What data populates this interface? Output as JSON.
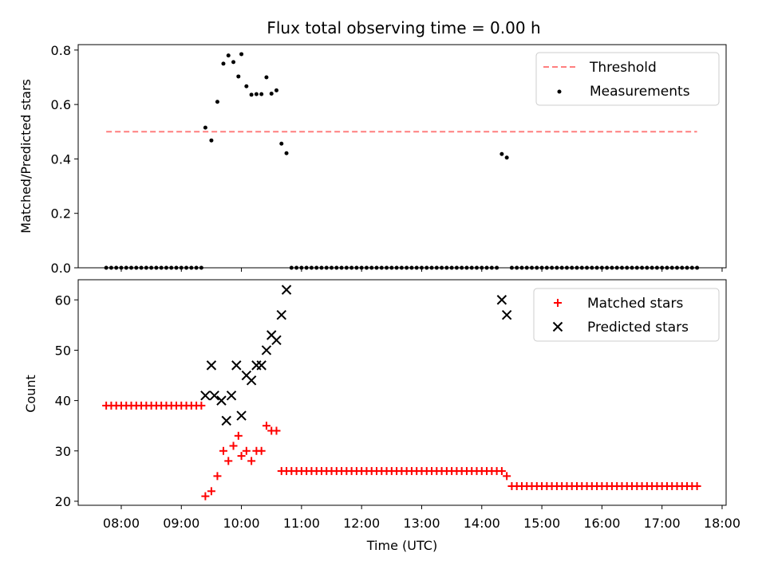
{
  "chart_data": [
    {
      "type": "scatter",
      "title": "Flux total observing time = 0.00 h",
      "xlabel": "",
      "ylabel": "Matched/Predicted stars",
      "xlim": [
        "07:17",
        "18:04"
      ],
      "ylim": [
        0,
        0.82
      ],
      "yticks": [
        "0.0",
        "0.2",
        "0.4",
        "0.6",
        "0.8"
      ],
      "legend_position": "top-right",
      "grid": false,
      "series": [
        {
          "name": "Threshold",
          "kind": "dashed-line",
          "color": "#ff7f7f",
          "points": [
            [
              "07:45",
              0.5
            ],
            [
              "17:35",
              0.5
            ]
          ]
        },
        {
          "name": "Measurements",
          "kind": "scatter-dot",
          "color": "#000000",
          "points": [
            [
              "07:45",
              0
            ],
            [
              "07:50",
              0
            ],
            [
              "07:55",
              0
            ],
            [
              "08:00",
              0
            ],
            [
              "08:05",
              0
            ],
            [
              "08:10",
              0
            ],
            [
              "08:15",
              0
            ],
            [
              "08:20",
              0
            ],
            [
              "08:25",
              0
            ],
            [
              "08:30",
              0
            ],
            [
              "08:35",
              0
            ],
            [
              "08:40",
              0
            ],
            [
              "08:45",
              0
            ],
            [
              "08:50",
              0
            ],
            [
              "08:55",
              0
            ],
            [
              "09:00",
              0
            ],
            [
              "09:05",
              0
            ],
            [
              "09:10",
              0
            ],
            [
              "09:15",
              0
            ],
            [
              "09:20",
              0
            ],
            [
              "09:24",
              0.515
            ],
            [
              "09:30",
              0.468
            ],
            [
              "09:36",
              0.61
            ],
            [
              "09:42",
              0.75
            ],
            [
              "09:47",
              0.78
            ],
            [
              "09:52",
              0.756
            ],
            [
              "09:57",
              0.703
            ],
            [
              "10:00",
              0.785
            ],
            [
              "10:05",
              0.667
            ],
            [
              "10:10",
              0.636
            ],
            [
              "10:15",
              0.638
            ],
            [
              "10:20",
              0.638
            ],
            [
              "10:25",
              0.7
            ],
            [
              "10:30",
              0.64
            ],
            [
              "10:35",
              0.652
            ],
            [
              "10:40",
              0.456
            ],
            [
              "10:45",
              0.421
            ],
            [
              "10:50",
              0
            ],
            [
              "10:55",
              0
            ],
            [
              "11:00",
              0
            ],
            [
              "11:05",
              0
            ],
            [
              "11:10",
              0
            ],
            [
              "11:15",
              0
            ],
            [
              "11:20",
              0
            ],
            [
              "11:25",
              0
            ],
            [
              "11:30",
              0
            ],
            [
              "11:35",
              0
            ],
            [
              "11:40",
              0
            ],
            [
              "11:45",
              0
            ],
            [
              "11:50",
              0
            ],
            [
              "11:55",
              0
            ],
            [
              "12:00",
              0
            ],
            [
              "12:05",
              0
            ],
            [
              "12:10",
              0
            ],
            [
              "12:15",
              0
            ],
            [
              "12:20",
              0
            ],
            [
              "12:25",
              0
            ],
            [
              "12:30",
              0
            ],
            [
              "12:35",
              0
            ],
            [
              "12:40",
              0
            ],
            [
              "12:45",
              0
            ],
            [
              "12:50",
              0
            ],
            [
              "12:55",
              0
            ],
            [
              "13:00",
              0
            ],
            [
              "13:05",
              0
            ],
            [
              "13:10",
              0
            ],
            [
              "13:15",
              0
            ],
            [
              "13:20",
              0
            ],
            [
              "13:25",
              0
            ],
            [
              "13:30",
              0
            ],
            [
              "13:35",
              0
            ],
            [
              "13:40",
              0
            ],
            [
              "13:45",
              0
            ],
            [
              "13:50",
              0
            ],
            [
              "13:55",
              0
            ],
            [
              "14:00",
              0
            ],
            [
              "14:05",
              0
            ],
            [
              "14:10",
              0
            ],
            [
              "14:15",
              0
            ],
            [
              "14:20",
              0.418
            ],
            [
              "14:25",
              0.405
            ],
            [
              "14:30",
              0
            ],
            [
              "14:35",
              0
            ],
            [
              "14:40",
              0
            ],
            [
              "14:45",
              0
            ],
            [
              "14:50",
              0
            ],
            [
              "14:55",
              0
            ],
            [
              "15:00",
              0
            ],
            [
              "15:05",
              0
            ],
            [
              "15:10",
              0
            ],
            [
              "15:15",
              0
            ],
            [
              "15:20",
              0
            ],
            [
              "15:25",
              0
            ],
            [
              "15:30",
              0
            ],
            [
              "15:35",
              0
            ],
            [
              "15:40",
              0
            ],
            [
              "15:45",
              0
            ],
            [
              "15:50",
              0
            ],
            [
              "15:55",
              0
            ],
            [
              "16:00",
              0
            ],
            [
              "16:05",
              0
            ],
            [
              "16:10",
              0
            ],
            [
              "16:15",
              0
            ],
            [
              "16:20",
              0
            ],
            [
              "16:25",
              0
            ],
            [
              "16:30",
              0
            ],
            [
              "16:35",
              0
            ],
            [
              "16:40",
              0
            ],
            [
              "16:45",
              0
            ],
            [
              "16:50",
              0
            ],
            [
              "16:55",
              0
            ],
            [
              "17:00",
              0
            ],
            [
              "17:05",
              0
            ],
            [
              "17:10",
              0
            ],
            [
              "17:15",
              0
            ],
            [
              "17:20",
              0
            ],
            [
              "17:25",
              0
            ],
            [
              "17:30",
              0
            ],
            [
              "17:35",
              0
            ]
          ]
        }
      ]
    },
    {
      "type": "scatter",
      "title": "",
      "xlabel": "Time (UTC)",
      "ylabel": "Count",
      "xlim": [
        "07:17",
        "18:04"
      ],
      "ylim": [
        19.2,
        64
      ],
      "xticks": [
        "08:00",
        "09:00",
        "10:00",
        "11:00",
        "12:00",
        "13:00",
        "14:00",
        "15:00",
        "16:00",
        "17:00",
        "18:00"
      ],
      "yticks": [
        "20",
        "30",
        "40",
        "50",
        "60"
      ],
      "legend_position": "top-right",
      "grid": false,
      "series": [
        {
          "name": "Matched stars",
          "kind": "plus",
          "color": "#ff0000",
          "points": [
            [
              "07:45",
              39
            ],
            [
              "07:50",
              39
            ],
            [
              "07:55",
              39
            ],
            [
              "08:00",
              39
            ],
            [
              "08:05",
              39
            ],
            [
              "08:10",
              39
            ],
            [
              "08:15",
              39
            ],
            [
              "08:20",
              39
            ],
            [
              "08:25",
              39
            ],
            [
              "08:30",
              39
            ],
            [
              "08:35",
              39
            ],
            [
              "08:40",
              39
            ],
            [
              "08:45",
              39
            ],
            [
              "08:50",
              39
            ],
            [
              "08:55",
              39
            ],
            [
              "09:00",
              39
            ],
            [
              "09:05",
              39
            ],
            [
              "09:10",
              39
            ],
            [
              "09:15",
              39
            ],
            [
              "09:20",
              39
            ],
            [
              "09:24",
              21
            ],
            [
              "09:30",
              22
            ],
            [
              "09:36",
              25
            ],
            [
              "09:42",
              30
            ],
            [
              "09:47",
              28
            ],
            [
              "09:52",
              31
            ],
            [
              "09:57",
              33
            ],
            [
              "10:00",
              29
            ],
            [
              "10:05",
              30
            ],
            [
              "10:10",
              28
            ],
            [
              "10:15",
              30
            ],
            [
              "10:20",
              30
            ],
            [
              "10:25",
              35
            ],
            [
              "10:30",
              34
            ],
            [
              "10:35",
              34
            ],
            [
              "10:40",
              26
            ],
            [
              "10:45",
              26
            ],
            [
              "10:50",
              26
            ],
            [
              "10:55",
              26
            ],
            [
              "11:00",
              26
            ],
            [
              "11:05",
              26
            ],
            [
              "11:10",
              26
            ],
            [
              "11:15",
              26
            ],
            [
              "11:20",
              26
            ],
            [
              "11:25",
              26
            ],
            [
              "11:30",
              26
            ],
            [
              "11:35",
              26
            ],
            [
              "11:40",
              26
            ],
            [
              "11:45",
              26
            ],
            [
              "11:50",
              26
            ],
            [
              "11:55",
              26
            ],
            [
              "12:00",
              26
            ],
            [
              "12:05",
              26
            ],
            [
              "12:10",
              26
            ],
            [
              "12:15",
              26
            ],
            [
              "12:20",
              26
            ],
            [
              "12:25",
              26
            ],
            [
              "12:30",
              26
            ],
            [
              "12:35",
              26
            ],
            [
              "12:40",
              26
            ],
            [
              "12:45",
              26
            ],
            [
              "12:50",
              26
            ],
            [
              "12:55",
              26
            ],
            [
              "13:00",
              26
            ],
            [
              "13:05",
              26
            ],
            [
              "13:10",
              26
            ],
            [
              "13:15",
              26
            ],
            [
              "13:20",
              26
            ],
            [
              "13:25",
              26
            ],
            [
              "13:30",
              26
            ],
            [
              "13:35",
              26
            ],
            [
              "13:40",
              26
            ],
            [
              "13:45",
              26
            ],
            [
              "13:50",
              26
            ],
            [
              "13:55",
              26
            ],
            [
              "14:00",
              26
            ],
            [
              "14:05",
              26
            ],
            [
              "14:10",
              26
            ],
            [
              "14:15",
              26
            ],
            [
              "14:20",
              26
            ],
            [
              "14:25",
              25
            ],
            [
              "14:30",
              23
            ],
            [
              "14:35",
              23
            ],
            [
              "14:40",
              23
            ],
            [
              "14:45",
              23
            ],
            [
              "14:50",
              23
            ],
            [
              "14:55",
              23
            ],
            [
              "15:00",
              23
            ],
            [
              "15:05",
              23
            ],
            [
              "15:10",
              23
            ],
            [
              "15:15",
              23
            ],
            [
              "15:20",
              23
            ],
            [
              "15:25",
              23
            ],
            [
              "15:30",
              23
            ],
            [
              "15:35",
              23
            ],
            [
              "15:40",
              23
            ],
            [
              "15:45",
              23
            ],
            [
              "15:50",
              23
            ],
            [
              "15:55",
              23
            ],
            [
              "16:00",
              23
            ],
            [
              "16:05",
              23
            ],
            [
              "16:10",
              23
            ],
            [
              "16:15",
              23
            ],
            [
              "16:20",
              23
            ],
            [
              "16:25",
              23
            ],
            [
              "16:30",
              23
            ],
            [
              "16:35",
              23
            ],
            [
              "16:40",
              23
            ],
            [
              "16:45",
              23
            ],
            [
              "16:50",
              23
            ],
            [
              "16:55",
              23
            ],
            [
              "17:00",
              23
            ],
            [
              "17:05",
              23
            ],
            [
              "17:10",
              23
            ],
            [
              "17:15",
              23
            ],
            [
              "17:20",
              23
            ],
            [
              "17:25",
              23
            ],
            [
              "17:30",
              23
            ],
            [
              "17:35",
              23
            ]
          ]
        },
        {
          "name": "Predicted stars",
          "kind": "x",
          "color": "#000000",
          "points": [
            [
              "09:24",
              41
            ],
            [
              "09:30",
              47
            ],
            [
              "09:33",
              41
            ],
            [
              "09:40",
              40
            ],
            [
              "09:45",
              36
            ],
            [
              "09:50",
              41
            ],
            [
              "09:55",
              47
            ],
            [
              "10:00",
              37
            ],
            [
              "10:05",
              45
            ],
            [
              "10:10",
              44
            ],
            [
              "10:15",
              47
            ],
            [
              "10:20",
              47
            ],
            [
              "10:25",
              50
            ],
            [
              "10:30",
              53
            ],
            [
              "10:35",
              52
            ],
            [
              "10:40",
              57
            ],
            [
              "10:45",
              62
            ],
            [
              "14:20",
              60
            ],
            [
              "14:25",
              57
            ]
          ]
        }
      ]
    }
  ]
}
